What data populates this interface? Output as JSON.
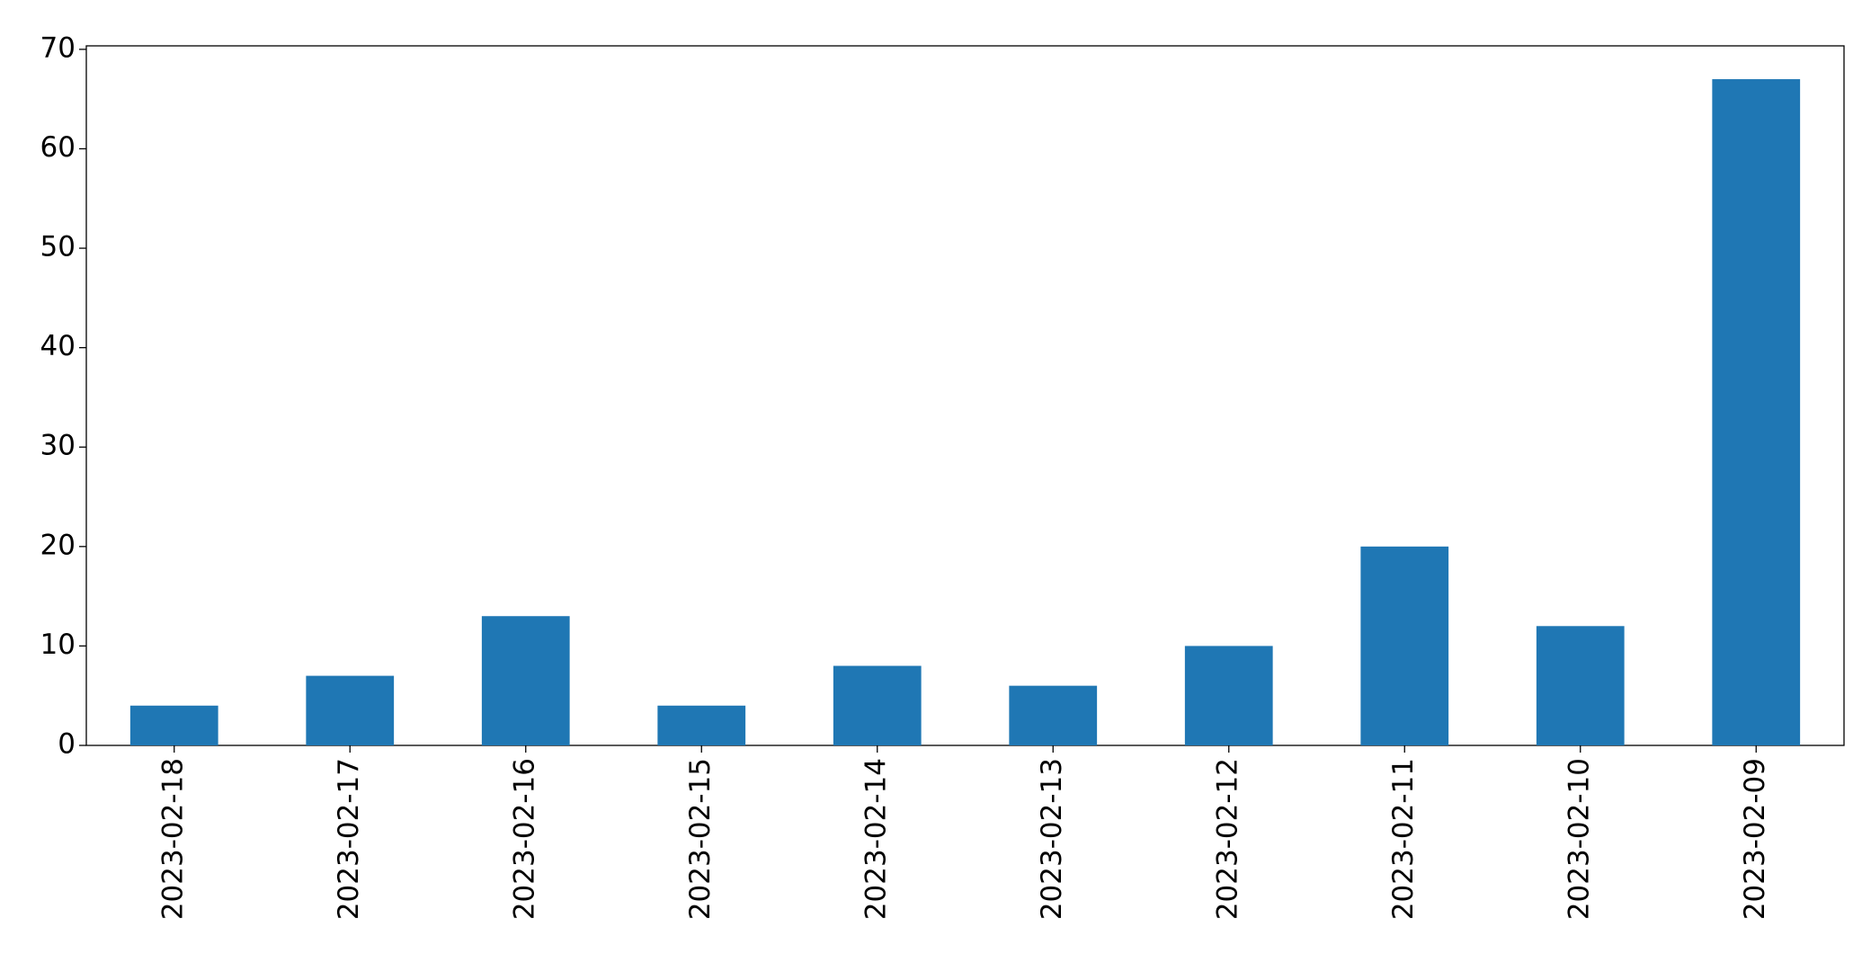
{
  "chart_data": {
    "type": "bar",
    "categories": [
      "2023-02-18",
      "2023-02-17",
      "2023-02-16",
      "2023-02-15",
      "2023-02-14",
      "2023-02-13",
      "2023-02-12",
      "2023-02-11",
      "2023-02-10",
      "2023-02-09"
    ],
    "values": [
      4,
      7,
      13,
      4,
      8,
      6,
      10,
      20,
      12,
      67
    ],
    "color": "#1f77b4",
    "ylim": [
      0,
      70.35
    ],
    "yticks": [
      0,
      10,
      20,
      30,
      40,
      50,
      60,
      70
    ],
    "grid": false
  }
}
